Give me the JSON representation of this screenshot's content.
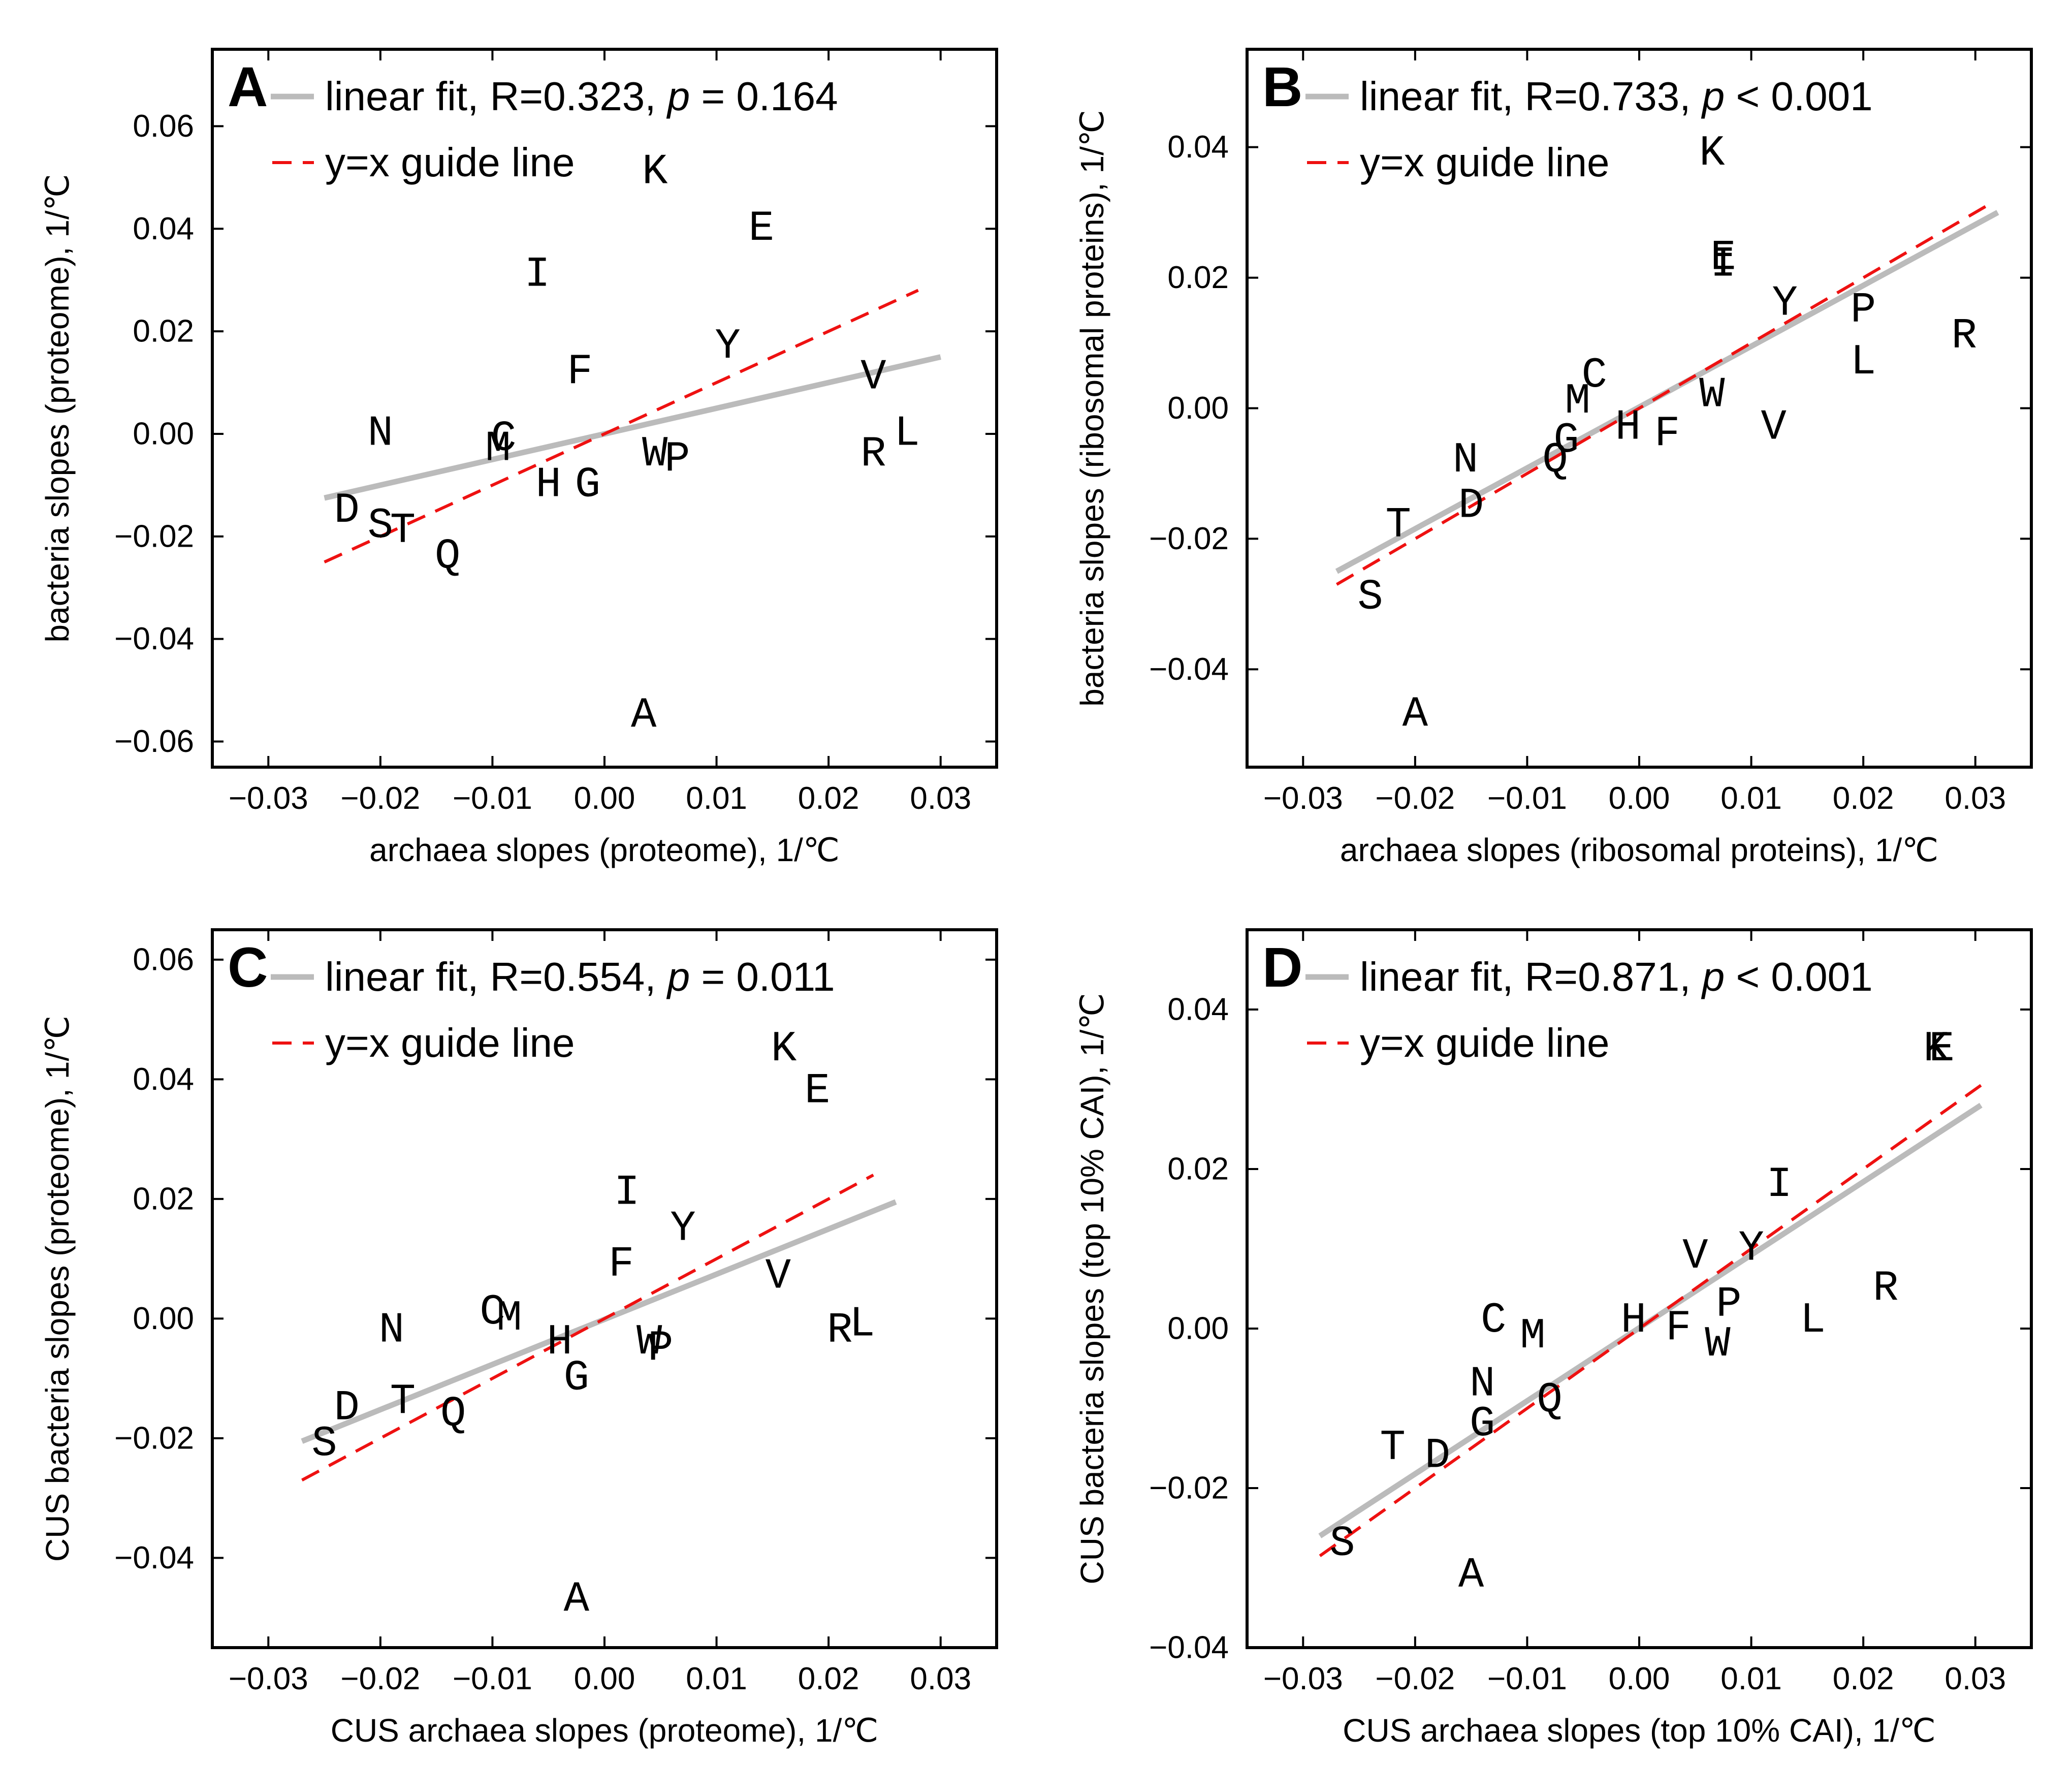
{
  "chart_data": [
    {
      "type": "scatter",
      "panel": "A",
      "xlabel": "archaea slopes (proteome), 1/℃",
      "ylabel": "bacteria slopes (proteome), 1/℃",
      "xlim": [
        -0.035,
        0.035
      ],
      "ylim": [
        -0.065,
        0.075
      ],
      "xticks": [
        -0.03,
        -0.02,
        -0.01,
        0.0,
        0.01,
        0.02,
        0.03
      ],
      "yticks": [
        -0.06,
        -0.04,
        -0.02,
        0.0,
        0.02,
        0.04,
        0.06
      ],
      "xtick_labels": [
        "−0.03",
        "−0.02",
        "−0.01",
        "0.00",
        "0.01",
        "0.02",
        "0.03"
      ],
      "ytick_labels": [
        "−0.06",
        "−0.04",
        "−0.02",
        "0.00",
        "0.02",
        "0.04",
        "0.06"
      ],
      "legend": {
        "fit_prefix": "linear fit, R=0.323, ",
        "p_symbol": "p",
        "p_rest": " = 0.164",
        "guide": "y=x guide line",
        "placement": "top-left"
      },
      "fit": {
        "x": [
          -0.025,
          0.03
        ],
        "y": [
          -0.0125,
          0.015
        ],
        "color": "#bbbbbb"
      },
      "guide": {
        "x": [
          -0.025,
          0.028
        ],
        "color": "#ee1111"
      },
      "points": [
        {
          "label": "K",
          "x": 0.0045,
          "y": 0.051
        },
        {
          "label": "E",
          "x": 0.014,
          "y": 0.04
        },
        {
          "label": "I",
          "x": -0.006,
          "y": 0.031
        },
        {
          "label": "Y",
          "x": 0.011,
          "y": 0.017
        },
        {
          "label": "F",
          "x": -0.0022,
          "y": 0.012
        },
        {
          "label": "V",
          "x": 0.024,
          "y": 0.011
        },
        {
          "label": "N",
          "x": -0.02,
          "y": 0.0
        },
        {
          "label": "L",
          "x": 0.027,
          "y": 0.0
        },
        {
          "label": "C",
          "x": -0.009,
          "y": -0.001
        },
        {
          "label": "M",
          "x": -0.0095,
          "y": -0.003
        },
        {
          "label": "W",
          "x": 0.0045,
          "y": -0.004
        },
        {
          "label": "R",
          "x": 0.024,
          "y": -0.004
        },
        {
          "label": "P",
          "x": 0.0065,
          "y": -0.005
        },
        {
          "label": "H",
          "x": -0.005,
          "y": -0.01
        },
        {
          "label": "G",
          "x": -0.0015,
          "y": -0.01
        },
        {
          "label": "D",
          "x": -0.023,
          "y": -0.015
        },
        {
          "label": "S",
          "x": -0.02,
          "y": -0.018
        },
        {
          "label": "T",
          "x": -0.018,
          "y": -0.019
        },
        {
          "label": "Q",
          "x": -0.014,
          "y": -0.024
        },
        {
          "label": "A",
          "x": 0.0035,
          "y": -0.055
        }
      ]
    },
    {
      "type": "scatter",
      "panel": "B",
      "xlabel": "archaea slopes (ribosomal proteins), 1/℃",
      "ylabel": "bacteria slopes (ribosomal proteins), 1/℃",
      "xlim": [
        -0.035,
        0.035
      ],
      "ylim": [
        -0.055,
        0.055
      ],
      "xticks": [
        -0.03,
        -0.02,
        -0.01,
        0.0,
        0.01,
        0.02,
        0.03
      ],
      "yticks": [
        -0.04,
        -0.02,
        0.0,
        0.02,
        0.04
      ],
      "xtick_labels": [
        "−0.03",
        "−0.02",
        "−0.01",
        "0.00",
        "0.01",
        "0.02",
        "0.03"
      ],
      "ytick_labels": [
        "−0.04",
        "−0.02",
        "0.00",
        "0.02",
        "0.04"
      ],
      "legend": {
        "fit_prefix": "linear fit, R=0.733, ",
        "p_symbol": "p",
        "p_rest": " < 0.001",
        "guide": "y=x guide line",
        "placement": "top-left"
      },
      "fit": {
        "x": [
          -0.027,
          0.032
        ],
        "y": [
          -0.025,
          0.03
        ],
        "color": "#bbbbbb"
      },
      "guide": {
        "x": [
          -0.027,
          0.031
        ],
        "color": "#ee1111"
      },
      "points": [
        {
          "label": "K",
          "x": 0.0065,
          "y": 0.039
        },
        {
          "label": "E",
          "x": 0.0075,
          "y": 0.023
        },
        {
          "label": "I",
          "x": 0.0075,
          "y": 0.022
        },
        {
          "label": "Y",
          "x": 0.013,
          "y": 0.016
        },
        {
          "label": "P",
          "x": 0.02,
          "y": 0.015
        },
        {
          "label": "R",
          "x": 0.029,
          "y": 0.011
        },
        {
          "label": "C",
          "x": -0.004,
          "y": 0.005
        },
        {
          "label": "L",
          "x": 0.02,
          "y": 0.007
        },
        {
          "label": "M",
          "x": -0.0055,
          "y": 0.001
        },
        {
          "label": "W",
          "x": 0.0065,
          "y": 0.002
        },
        {
          "label": "H",
          "x": -0.001,
          "y": -0.003
        },
        {
          "label": "V",
          "x": 0.012,
          "y": -0.003
        },
        {
          "label": "F",
          "x": 0.0025,
          "y": -0.004
        },
        {
          "label": "G",
          "x": -0.0065,
          "y": -0.005
        },
        {
          "label": "Q",
          "x": -0.0075,
          "y": -0.008
        },
        {
          "label": "N",
          "x": -0.0155,
          "y": -0.008
        },
        {
          "label": "D",
          "x": -0.015,
          "y": -0.015
        },
        {
          "label": "T",
          "x": -0.0215,
          "y": -0.018
        },
        {
          "label": "S",
          "x": -0.024,
          "y": -0.029
        },
        {
          "label": "A",
          "x": -0.02,
          "y": -0.047
        }
      ]
    },
    {
      "type": "scatter",
      "panel": "C",
      "xlabel": "CUS archaea slopes (proteome), 1/℃",
      "ylabel": "CUS bacteria slopes (proteome), 1/℃",
      "xlim": [
        -0.035,
        0.035
      ],
      "ylim": [
        -0.055,
        0.065
      ],
      "xticks": [
        -0.03,
        -0.02,
        -0.01,
        0.0,
        0.01,
        0.02,
        0.03
      ],
      "yticks": [
        -0.04,
        -0.02,
        0.0,
        0.02,
        0.04,
        0.06
      ],
      "xtick_labels": [
        "−0.03",
        "−0.02",
        "−0.01",
        "0.00",
        "0.01",
        "0.02",
        "0.03"
      ],
      "ytick_labels": [
        "−0.04",
        "−0.02",
        "0.00",
        "0.02",
        "0.04",
        "0.06"
      ],
      "legend": {
        "fit_prefix": "linear fit, R=0.554, ",
        "p_symbol": "p",
        "p_rest": " = 0.011",
        "guide": "y=x guide line",
        "placement": "top-left"
      },
      "fit": {
        "x": [
          -0.027,
          0.026
        ],
        "y": [
          -0.0205,
          0.0195
        ],
        "color": "#bbbbbb"
      },
      "guide": {
        "x": [
          -0.027,
          0.024
        ],
        "color": "#ee1111"
      },
      "points": [
        {
          "label": "K",
          "x": 0.016,
          "y": 0.045
        },
        {
          "label": "E",
          "x": 0.019,
          "y": 0.038
        },
        {
          "label": "I",
          "x": 0.002,
          "y": 0.021
        },
        {
          "label": "Y",
          "x": 0.007,
          "y": 0.015
        },
        {
          "label": "F",
          "x": 0.0015,
          "y": 0.009
        },
        {
          "label": "V",
          "x": 0.0155,
          "y": 0.007
        },
        {
          "label": "C",
          "x": -0.01,
          "y": 0.001
        },
        {
          "label": "M",
          "x": -0.0085,
          "y": 0.0
        },
        {
          "label": "N",
          "x": -0.019,
          "y": -0.002
        },
        {
          "label": "R",
          "x": 0.021,
          "y": -0.002
        },
        {
          "label": "L",
          "x": 0.023,
          "y": -0.001
        },
        {
          "label": "H",
          "x": -0.004,
          "y": -0.004
        },
        {
          "label": "W",
          "x": 0.004,
          "y": -0.004
        },
        {
          "label": "P",
          "x": 0.005,
          "y": -0.005
        },
        {
          "label": "G",
          "x": -0.0025,
          "y": -0.01
        },
        {
          "label": "T",
          "x": -0.018,
          "y": -0.014
        },
        {
          "label": "D",
          "x": -0.023,
          "y": -0.015
        },
        {
          "label": "Q",
          "x": -0.0135,
          "y": -0.016
        },
        {
          "label": "S",
          "x": -0.025,
          "y": -0.021
        },
        {
          "label": "A",
          "x": -0.0025,
          "y": -0.047
        }
      ]
    },
    {
      "type": "scatter",
      "panel": "D",
      "xlabel": "CUS archaea slopes (top 10% CAI), 1/℃",
      "ylabel": "CUS bacteria slopes (top 10% CAI), 1/℃",
      "xlim": [
        -0.035,
        0.035
      ],
      "ylim": [
        -0.04,
        0.05
      ],
      "xticks": [
        -0.03,
        -0.02,
        -0.01,
        0.0,
        0.01,
        0.02,
        0.03
      ],
      "yticks": [
        -0.04,
        -0.02,
        0.0,
        0.02,
        0.04
      ],
      "xtick_labels": [
        "−0.03",
        "−0.02",
        "−0.01",
        "0.00",
        "0.01",
        "0.02",
        "0.03"
      ],
      "ytick_labels": [
        "−0.04",
        "−0.02",
        "0.00",
        "0.02",
        "0.04"
      ],
      "legend": {
        "fit_prefix": "linear fit, R=0.871, ",
        "p_symbol": "p",
        "p_rest": " < 0.001",
        "guide": "y=x guide line",
        "placement": "top-left"
      },
      "fit": {
        "x": [
          -0.0285,
          0.0305
        ],
        "y": [
          -0.026,
          0.028
        ],
        "color": "#bbbbbb"
      },
      "guide": {
        "x": [
          -0.0285,
          0.0305
        ],
        "color": "#ee1111"
      },
      "points": [
        {
          "label": "E",
          "x": 0.027,
          "y": 0.035
        },
        {
          "label": "K",
          "x": 0.0265,
          "y": 0.035
        },
        {
          "label": "I",
          "x": 0.0125,
          "y": 0.018
        },
        {
          "label": "Y",
          "x": 0.01,
          "y": 0.01
        },
        {
          "label": "V",
          "x": 0.005,
          "y": 0.009
        },
        {
          "label": "P",
          "x": 0.008,
          "y": 0.003
        },
        {
          "label": "R",
          "x": 0.022,
          "y": 0.005
        },
        {
          "label": "L",
          "x": 0.0155,
          "y": 0.001
        },
        {
          "label": "C",
          "x": -0.013,
          "y": 0.001
        },
        {
          "label": "H",
          "x": -0.0005,
          "y": 0.001
        },
        {
          "label": "F",
          "x": 0.0035,
          "y": 0.0
        },
        {
          "label": "M",
          "x": -0.0095,
          "y": -0.001
        },
        {
          "label": "W",
          "x": 0.007,
          "y": -0.002
        },
        {
          "label": "N",
          "x": -0.014,
          "y": -0.007
        },
        {
          "label": "Q",
          "x": -0.008,
          "y": -0.009
        },
        {
          "label": "G",
          "x": -0.014,
          "y": -0.012
        },
        {
          "label": "T",
          "x": -0.022,
          "y": -0.015
        },
        {
          "label": "D",
          "x": -0.018,
          "y": -0.016
        },
        {
          "label": "A",
          "x": -0.015,
          "y": -0.031
        },
        {
          "label": "S",
          "x": -0.0265,
          "y": -0.027
        }
      ]
    }
  ]
}
